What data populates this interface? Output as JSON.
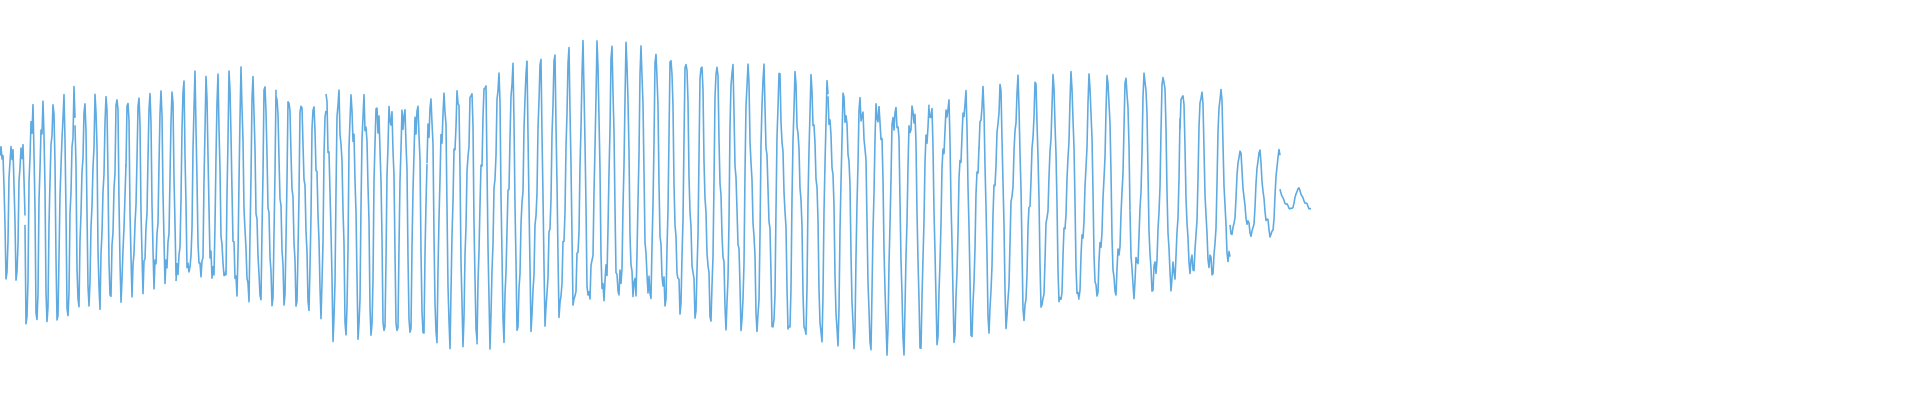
{
  "chart_data": {
    "type": "waveform",
    "color": "#5eaae1",
    "ylim": [
      -1,
      1
    ],
    "values": [
      0.55,
      0.88,
      0.8,
      0.75,
      0.8,
      0.85,
      0.8,
      0.95,
      0.95,
      0.97,
      1,
      1,
      1,
      1,
      1,
      1,
      1,
      0.98,
      0.97,
      0.93,
      0.9,
      0.86,
      0.84,
      0.87,
      0.75,
      0.33,
      0.08
    ]
  }
}
